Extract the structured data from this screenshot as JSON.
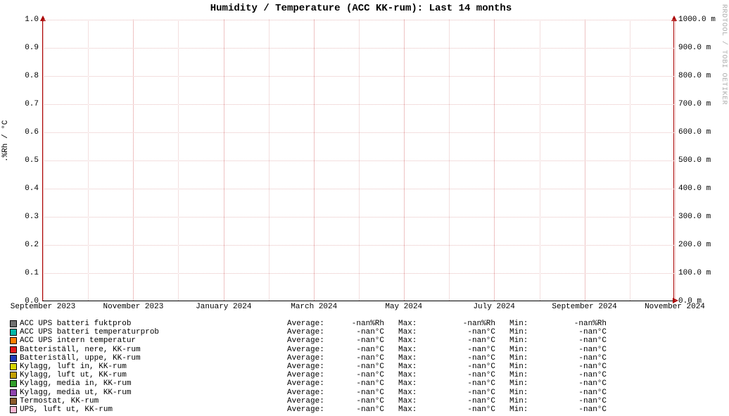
{
  "chart": {
    "type": "line",
    "title": "Humidity / Temperature (ACC KK-rum): Last 14 months",
    "ylabel_left": ".%Rh / °C",
    "watermark": "RRDTOOL / TOBI OETIKER",
    "background_color": "#ffffff",
    "grid_color": "#e8bfbf",
    "axis_color": "#a00000",
    "text_color": "#000000",
    "font_family": "monospace",
    "title_fontsize": 14,
    "label_fontsize": 11,
    "y_axis_left": {
      "min": 0.0,
      "max": 1.0,
      "ticks": [
        {
          "v": 0.0,
          "label": "0.0"
        },
        {
          "v": 0.1,
          "label": "0.1"
        },
        {
          "v": 0.2,
          "label": "0.2"
        },
        {
          "v": 0.3,
          "label": "0.3"
        },
        {
          "v": 0.4,
          "label": "0.4"
        },
        {
          "v": 0.5,
          "label": "0.5"
        },
        {
          "v": 0.6,
          "label": "0.6"
        },
        {
          "v": 0.7,
          "label": "0.7"
        },
        {
          "v": 0.8,
          "label": "0.8"
        },
        {
          "v": 0.9,
          "label": "0.9"
        },
        {
          "v": 1.0,
          "label": "1.0"
        }
      ]
    },
    "y_axis_right": {
      "min": 0.0,
      "max": 1000.0,
      "ticks": [
        {
          "v": 0.0,
          "label": "0.0 m"
        },
        {
          "v": 100.0,
          "label": "100.0 m"
        },
        {
          "v": 200.0,
          "label": "200.0 m"
        },
        {
          "v": 300.0,
          "label": "300.0 m"
        },
        {
          "v": 400.0,
          "label": "400.0 m"
        },
        {
          "v": 500.0,
          "label": "500.0 m"
        },
        {
          "v": 600.0,
          "label": "600.0 m"
        },
        {
          "v": 700.0,
          "label": "700.0 m"
        },
        {
          "v": 800.0,
          "label": "800.0 m"
        },
        {
          "v": 900.0,
          "label": "900.0 m"
        },
        {
          "v": 1000.0,
          "label": "1000.0 m"
        }
      ]
    },
    "x_axis": {
      "labels": [
        {
          "pos": 0.0,
          "text": "September 2023"
        },
        {
          "pos": 0.143,
          "text": "November 2023"
        },
        {
          "pos": 0.286,
          "text": "January 2024"
        },
        {
          "pos": 0.429,
          "text": "March 2024"
        },
        {
          "pos": 0.571,
          "text": "May 2024"
        },
        {
          "pos": 0.714,
          "text": "July 2024"
        },
        {
          "pos": 0.857,
          "text": "September 2024"
        },
        {
          "pos": 1.0,
          "text": "November 2024"
        }
      ],
      "minor_tick_count": 15
    },
    "series": [
      {
        "color": "#707070",
        "label": "ACC UPS batteri fuktprob",
        "unit": "%Rh",
        "avg": "-nan",
        "max": "-nan",
        "min": "-nan"
      },
      {
        "color": "#00b8a8",
        "label": "ACC UPS batteri temperaturprob",
        "unit": "°C",
        "avg": "-nan",
        "max": "-nan",
        "min": "-nan"
      },
      {
        "color": "#ff7f00",
        "label": "ACC UPS intern temperatur",
        "unit": "°C",
        "avg": "-nan",
        "max": "-nan",
        "min": "-nan"
      },
      {
        "color": "#e31a1c",
        "label": "Batteriställ, nere, KK-rum",
        "unit": "°C",
        "avg": "-nan",
        "max": "-nan",
        "min": "-nan"
      },
      {
        "color": "#1f3ab8",
        "label": "Batteriställ, uppe, KK-rum",
        "unit": "°C",
        "avg": "-nan",
        "max": "-nan",
        "min": "-nan"
      },
      {
        "color": "#d6d600",
        "label": "Kylagg, luft in, KK-rum",
        "unit": "°C",
        "avg": "-nan",
        "max": "-nan",
        "min": "-nan"
      },
      {
        "color": "#c4a000",
        "label": "Kylagg, luft ut, KK-rum",
        "unit": "°C",
        "avg": "-nan",
        "max": "-nan",
        "min": "-nan"
      },
      {
        "color": "#33a02c",
        "label": "Kylagg, media in, KK-rum",
        "unit": "°C",
        "avg": "-nan",
        "max": "-nan",
        "min": "-nan"
      },
      {
        "color": "#8e44ad",
        "label": "Kylagg, media ut, KK-rum",
        "unit": "°C",
        "avg": "-nan",
        "max": "-nan",
        "min": "-nan"
      },
      {
        "color": "#8b5a2b",
        "label": "Termostat, KK-rum",
        "unit": "°C",
        "avg": "-nan",
        "max": "-nan",
        "min": "-nan"
      },
      {
        "color": "#f7b6d2",
        "label": "UPS, luft ut, KK-rum",
        "unit": "°C",
        "avg": "-nan",
        "max": "-nan",
        "min": "-nan"
      }
    ],
    "stat_labels": {
      "avg": "Average:",
      "max": "Max:",
      "min": "Min:"
    }
  }
}
